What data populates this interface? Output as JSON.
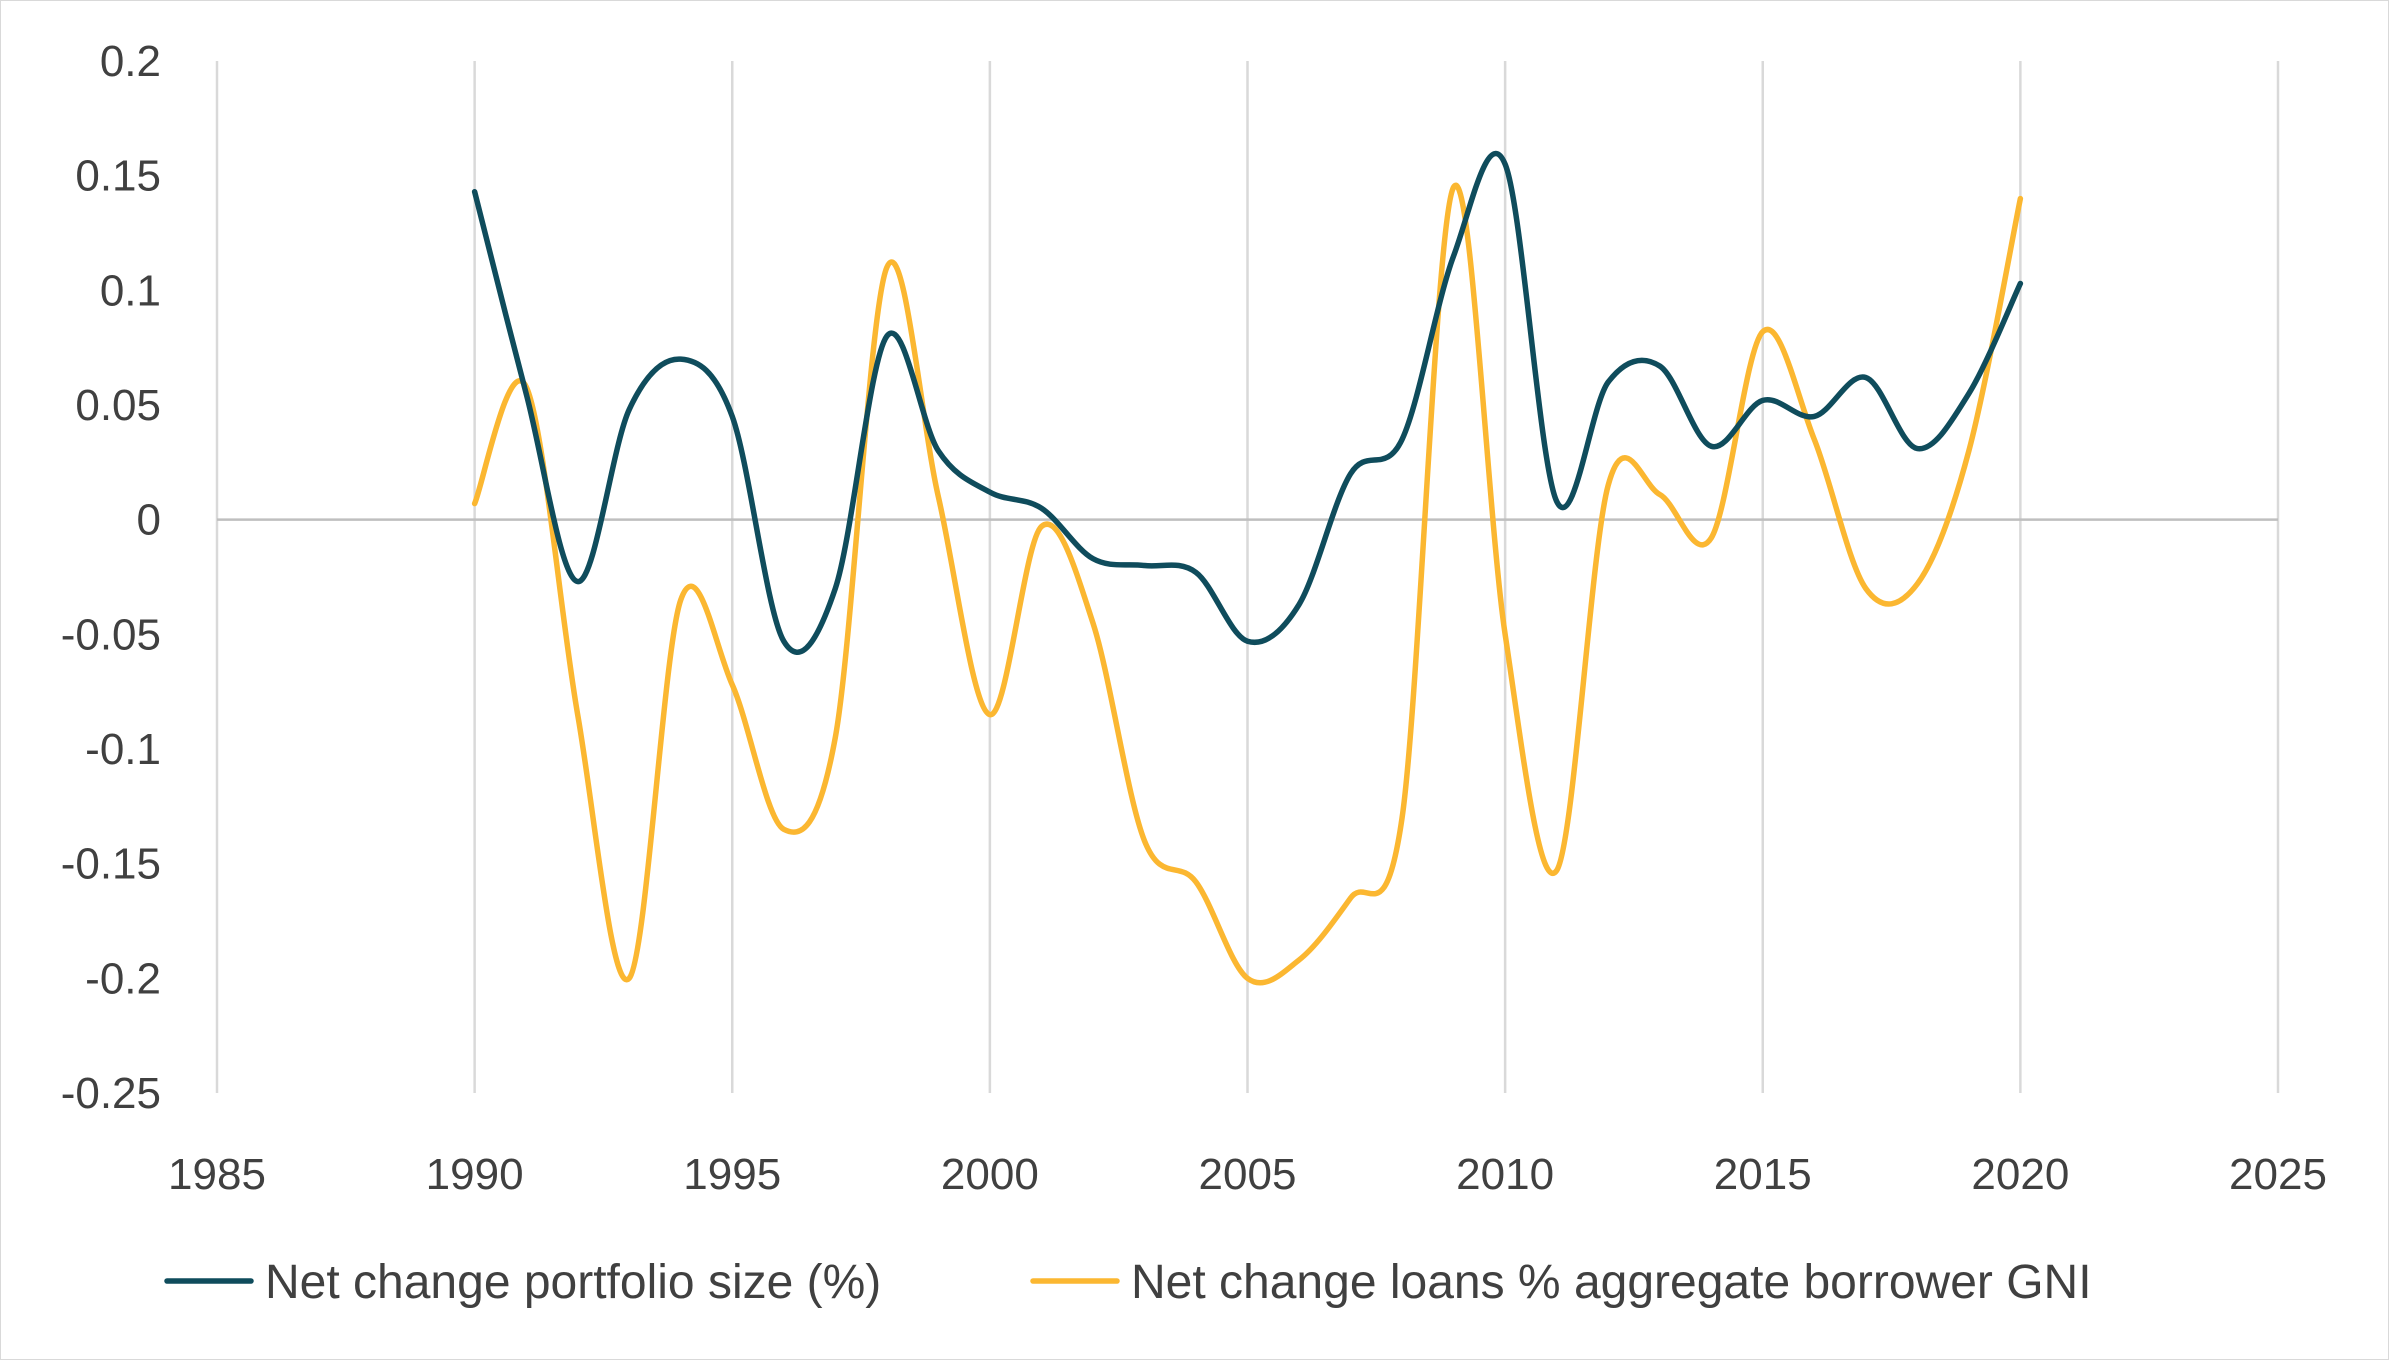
{
  "chart_data": {
    "type": "line",
    "title": "",
    "xlabel": "",
    "ylabel": "",
    "xlim": [
      1985,
      2025
    ],
    "ylim": [
      -0.25,
      0.2
    ],
    "x_ticks": [
      1985,
      1990,
      1995,
      2000,
      2005,
      2010,
      2015,
      2020,
      2025
    ],
    "x_tick_labels": [
      "1985",
      "1990",
      "1995",
      "2000",
      "2005",
      "2010",
      "2015",
      "2020",
      "2025"
    ],
    "y_ticks": [
      0.2,
      0.15,
      0.1,
      0.05,
      0,
      -0.05,
      -0.1,
      -0.15,
      -0.2,
      -0.25
    ],
    "y_tick_labels": [
      "0.2",
      "0.15",
      "0.1",
      "0.05",
      "0",
      "-0.05",
      "-0.1",
      "-0.15",
      "-0.2",
      "-0.25"
    ],
    "vertical_gridlines": true,
    "horizontal_gridlines": false,
    "smooth": true,
    "legend_position": "bottom",
    "x": [
      1990,
      1991,
      1992,
      1993,
      1994,
      1995,
      1996,
      1997,
      1998,
      1999,
      2000,
      2001,
      2002,
      2003,
      2004,
      2005,
      2006,
      2007,
      2008,
      2009,
      2010,
      2011,
      2012,
      2013,
      2014,
      2015,
      2016,
      2017,
      2018,
      2019,
      2020
    ],
    "series": [
      {
        "name": "Net change portfolio size (%)",
        "color": "#0f4c5c",
        "values": [
          0.143,
          0.055,
          -0.027,
          0.048,
          0.07,
          0.045,
          -0.053,
          -0.03,
          0.08,
          0.03,
          0.012,
          0.005,
          -0.017,
          -0.02,
          -0.023,
          -0.053,
          -0.037,
          0.02,
          0.035,
          0.115,
          0.155,
          0.008,
          0.06,
          0.067,
          0.032,
          0.052,
          0.045,
          0.062,
          0.031,
          0.055,
          0.103
        ]
      },
      {
        "name": "Net change loans % aggregate borrower GNI",
        "color": "#fbb731",
        "values": [
          0.007,
          0.058,
          -0.085,
          -0.2,
          -0.035,
          -0.072,
          -0.135,
          -0.095,
          0.11,
          0.01,
          -0.085,
          -0.003,
          -0.045,
          -0.14,
          -0.158,
          -0.2,
          -0.192,
          -0.165,
          -0.13,
          0.145,
          -0.05,
          -0.153,
          0.015,
          0.011,
          -0.008,
          0.082,
          0.035,
          -0.03,
          -0.028,
          0.03,
          0.14
        ]
      }
    ]
  }
}
